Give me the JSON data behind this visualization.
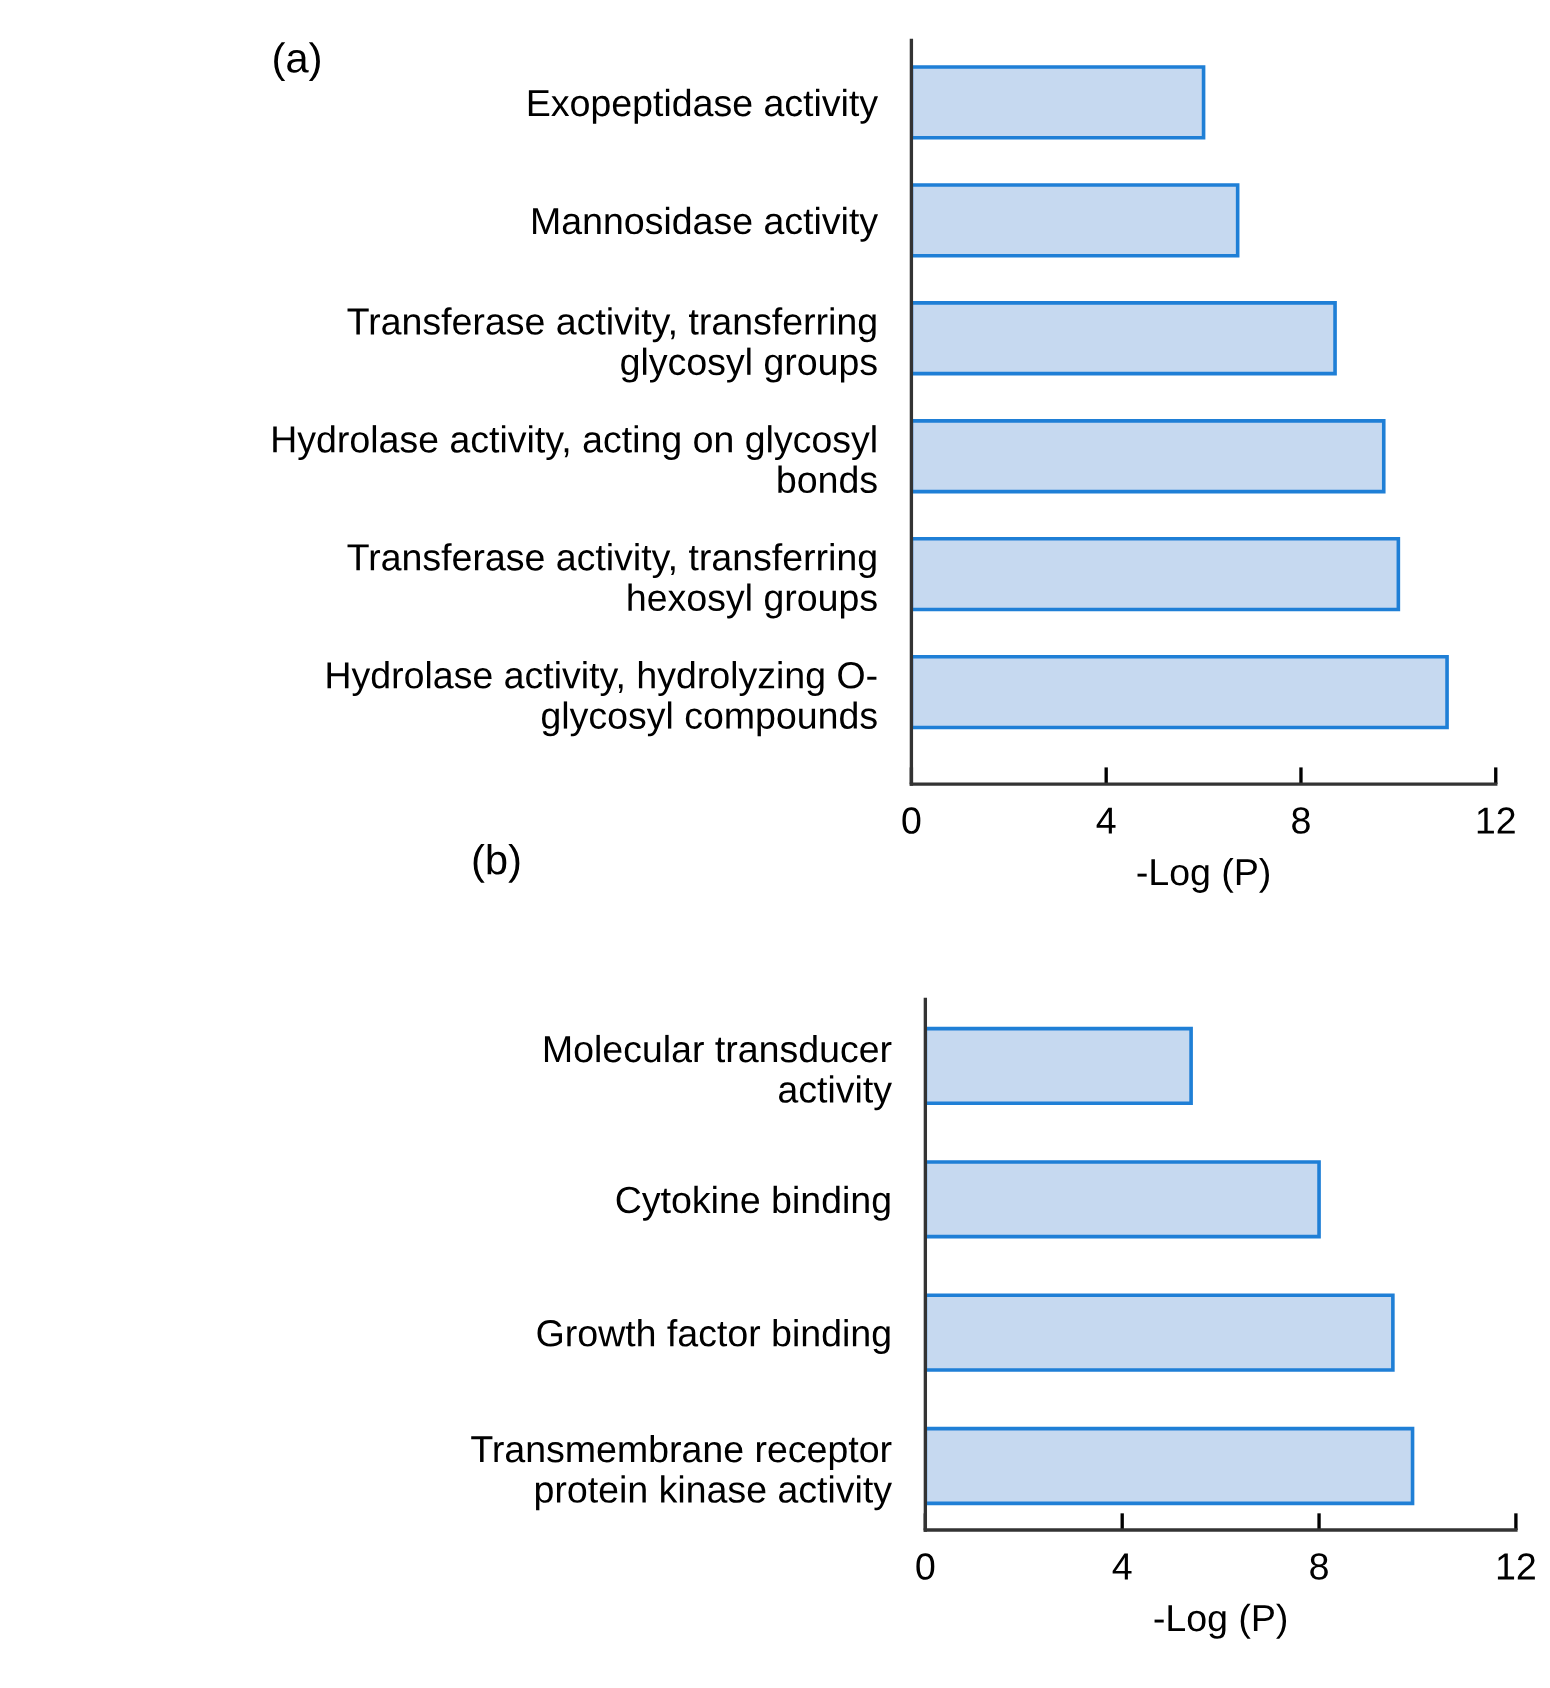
{
  "chart_data": [
    {
      "type": "bar",
      "title": "(a)",
      "orientation": "horizontal",
      "xlabel": "-Log (P)",
      "categories": [
        "Exopeptidase activity",
        "Mannosidase activity",
        "Transferase activity, transferring\nglycosyl groups",
        "Hydrolase activity, acting on glycosyl\nbonds",
        "Transferase activity, transferring\nhexosyl groups",
        "Hydrolase activity, hydrolyzing O-\nglycosyl compounds"
      ],
      "values": [
        6.0,
        6.7,
        8.7,
        9.7,
        10.0,
        11.0
      ],
      "color": "#c6d9f0",
      "xlim": [
        0,
        12
      ],
      "xticks": [
        0,
        4,
        8,
        12
      ],
      "grid": false,
      "legend": false
    },
    {
      "type": "bar",
      "title": "(b)",
      "orientation": "horizontal",
      "xlabel": "-Log (P)",
      "categories": [
        "Molecular transducer\nactivity",
        "Cytokine binding",
        "Growth factor binding",
        "Transmembrane receptor\nprotein kinase activity"
      ],
      "values": [
        5.4,
        8.0,
        9.5,
        9.9
      ],
      "color": "#c6d9f0",
      "xlim": [
        0,
        12
      ],
      "xticks": [
        0,
        4,
        8,
        12
      ],
      "grid": false,
      "legend": false
    }
  ]
}
